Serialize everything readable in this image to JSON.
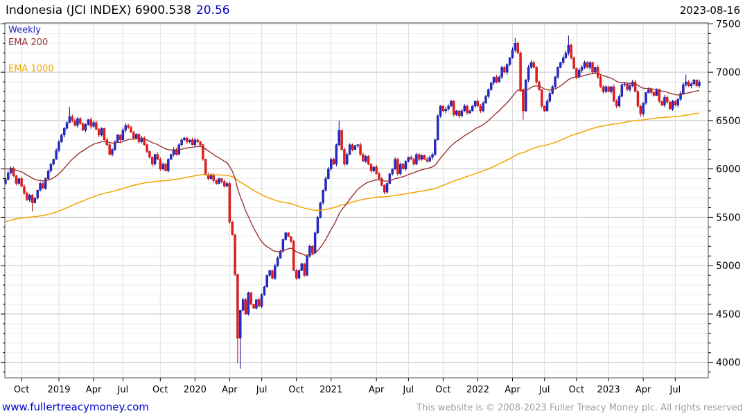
{
  "header": {
    "title": "Indonesia (JCI INDEX) 6900.538",
    "change": "20.56",
    "date": "2023-08-16"
  },
  "legend": [
    {
      "label": "Weekly",
      "color": "#2222bb"
    },
    {
      "label": "EMA 200",
      "color": "#993333"
    },
    {
      "label": "EMA 1000",
      "color": "#f0a400"
    }
  ],
  "footer": {
    "link": "www.fullertreacymoney.com",
    "copyright": "This website is © 2008-2023 Fuller Treacy Money plc. All rights reserved"
  },
  "chart_data": {
    "type": "candlestick",
    "instrument": "Indonesia (JCI INDEX)",
    "timeframe": "Weekly",
    "last_price": 6900.538,
    "change": 20.56,
    "date": "2023-08-16",
    "y_axis": {
      "min": 3840,
      "max": 7510,
      "major_step": 500,
      "minor_step": 100,
      "major_ticks": [
        4000,
        4500,
        5000,
        5500,
        6000,
        6500,
        7000,
        7500
      ],
      "side": "right"
    },
    "x_ticks": [
      {
        "label": "Oct",
        "week": 6
      },
      {
        "label": "2019",
        "week": 20
      },
      {
        "label": "Apr",
        "week": 33
      },
      {
        "label": "Jul",
        "week": 44
      },
      {
        "label": "Oct",
        "week": 58
      },
      {
        "label": "2020",
        "week": 71
      },
      {
        "label": "Apr",
        "week": 84
      },
      {
        "label": "Jul",
        "week": 96
      },
      {
        "label": "Oct",
        "week": 109
      },
      {
        "label": "2021",
        "week": 122
      },
      {
        "label": "Apr",
        "week": 139
      },
      {
        "label": "Jul",
        "week": 151
      },
      {
        "label": "Oct",
        "week": 164
      },
      {
        "label": "2022",
        "week": 177
      },
      {
        "label": "Apr",
        "week": 190
      },
      {
        "label": "Jul",
        "week": 202
      },
      {
        "label": "Oct",
        "week": 214
      },
      {
        "label": "2023",
        "week": 226
      },
      {
        "label": "Apr",
        "week": 239
      },
      {
        "label": "Jul",
        "week": 251
      }
    ],
    "weeks_total": 261,
    "open_first": 5850,
    "closes": [
      5890,
      5960,
      6010,
      5930,
      5850,
      5900,
      5820,
      5750,
      5680,
      5730,
      5650,
      5700,
      5780,
      5850,
      5800,
      5900,
      5980,
      6050,
      6100,
      6190,
      6280,
      6350,
      6420,
      6480,
      6540,
      6500,
      6450,
      6520,
      6470,
      6400,
      6460,
      6510,
      6440,
      6480,
      6410,
      6350,
      6420,
      6300,
      6250,
      6150,
      6200,
      6280,
      6350,
      6300,
      6400,
      6450,
      6430,
      6380,
      6320,
      6360,
      6280,
      6320,
      6250,
      6180,
      6120,
      6050,
      6150,
      6100,
      6000,
      6050,
      5980,
      6100,
      6150,
      6200,
      6150,
      6250,
      6300,
      6320,
      6280,
      6300,
      6250,
      6300,
      6280,
      6250,
      6100,
      5940,
      5900,
      5940,
      5880,
      5850,
      5900,
      5870,
      5820,
      5850,
      5450,
      5320,
      4910,
      4250,
      4540,
      4650,
      4500,
      4720,
      4600,
      4560,
      4650,
      4580,
      4700,
      4780,
      4900,
      4950,
      4870,
      5000,
      5080,
      5150,
      5270,
      5340,
      5300,
      5250,
      4950,
      4870,
      4950,
      5020,
      4900,
      5100,
      5200,
      5130,
      5340,
      5500,
      5650,
      5780,
      5900,
      6000,
      6100,
      6050,
      6250,
      6400,
      6200,
      6050,
      6150,
      6250,
      6200,
      6240,
      6250,
      6150,
      6080,
      6130,
      6050,
      5980,
      6020,
      5950,
      5900,
      5830,
      5760,
      5850,
      5950,
      6000,
      6100,
      5950,
      6050,
      6000,
      6080,
      6120,
      6100,
      6050,
      6150,
      6100,
      6140,
      6100,
      6080,
      6120,
      6150,
      6300,
      6550,
      6650,
      6600,
      6620,
      6650,
      6700,
      6560,
      6600,
      6550,
      6600,
      6650,
      6580,
      6600,
      6650,
      6700,
      6650,
      6600,
      6680,
      6750,
      6820,
      6890,
      6950,
      6900,
      6950,
      7050,
      7000,
      7080,
      7150,
      7230,
      7300,
      7200,
      6820,
      6600,
      6920,
      7050,
      7100,
      7050,
      6900,
      6820,
      6650,
      6600,
      6700,
      6780,
      6850,
      6950,
      7050,
      7100,
      7150,
      7200,
      7280,
      7150,
      7040,
      6950,
      7020,
      7050,
      7100,
      7050,
      7100,
      7000,
      7050,
      6950,
      6850,
      6800,
      6850,
      6800,
      6850,
      6700,
      6650,
      6750,
      6870,
      6880,
      6820,
      6860,
      6900,
      6800,
      6650,
      6570,
      6680,
      6790,
      6820,
      6790,
      6760,
      6820,
      6700,
      6660,
      6740,
      6690,
      6620,
      6700,
      6660,
      6720,
      6780,
      6870,
      6900,
      6860,
      6880,
      6920,
      6860,
      6900.54
    ],
    "wick_overrides": {
      "10": {
        "low": 5560
      },
      "24": {
        "high": 6640
      },
      "87": {
        "low": 3990
      },
      "88": {
        "low": 3935
      },
      "125": {
        "high": 6500
      },
      "191": {
        "high": 7355
      },
      "194": {
        "low": 6510
      },
      "211": {
        "high": 7380
      },
      "238": {
        "low": 6540
      },
      "255": {
        "high": 6975
      }
    },
    "emas": [
      {
        "name": "EMA 200",
        "color": "#993333",
        "period_weeks": 29,
        "seed": 6010
      },
      {
        "name": "EMA 1000",
        "color": "#f0a400",
        "period_weeks": 144,
        "seed": 5450
      }
    ],
    "colors": {
      "up": "#2a2ac8",
      "up_stroke": "#00008b",
      "down": "#e81c1c",
      "down_stroke": "#b30000",
      "grid_minor": "#ededed",
      "grid_major": "#c3c3c3",
      "grid_vertical": "#dcdcdc",
      "border": "#4d4d4d",
      "axis_text": "#000000",
      "accent": "#0000cc",
      "muted": "#9e9e9e",
      "title": "#000000"
    }
  }
}
